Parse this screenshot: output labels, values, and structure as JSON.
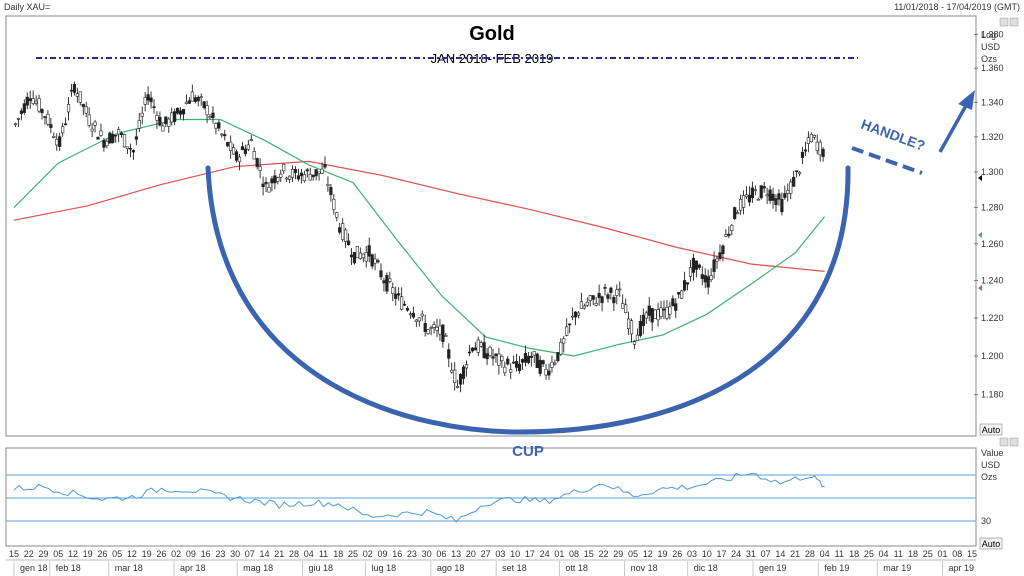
{
  "header": {
    "symbol": "Daily XAU=",
    "date_range": "11/01/2018 - 17/04/2019 (GMT)"
  },
  "annotations": {
    "cup": "CUP",
    "handle": "HANDLE?"
  },
  "buttons": {
    "auto_main": "Auto",
    "auto_rsi": "Auto"
  },
  "colors": {
    "candle": "#222222",
    "ma_fast": "#3cb371",
    "ma_slow": "#e05050",
    "cup": "#3a63b0",
    "resistance": "#1f2f8f",
    "rsi": "#4a9ad8"
  },
  "chart_data": [
    {
      "type": "candlestick",
      "title": "Gold",
      "subtitle": "JAN 2018- FEB 2019",
      "y_axis_labels": [
        "Log",
        "USD",
        "Ozs"
      ],
      "y_scale": "log",
      "ylim": [
        1160,
        1390
      ],
      "yticks": [
        1180,
        1200,
        1220,
        1240,
        1260,
        1280,
        1300,
        1320,
        1340,
        1360,
        1380
      ],
      "ytick_labels": [
        "1.180",
        "1.200",
        "1.220",
        "1.240",
        "1.260",
        "1.280",
        "1.300",
        "1.320",
        "1.340",
        "1.360",
        "1.380"
      ],
      "x_start": "2018-01-15",
      "x_end": "2019-04-15",
      "resistance_level": 1366,
      "close_series": [
        [
          "2018-01-15",
          1327
        ],
        [
          "2018-01-22",
          1345
        ],
        [
          "2018-01-29",
          1333
        ],
        [
          "2018-02-05",
          1316
        ],
        [
          "2018-02-12",
          1350
        ],
        [
          "2018-02-19",
          1330
        ],
        [
          "2018-02-26",
          1318
        ],
        [
          "2018-03-05",
          1322
        ],
        [
          "2018-03-12",
          1312
        ],
        [
          "2018-03-19",
          1345
        ],
        [
          "2018-03-26",
          1326
        ],
        [
          "2018-04-02",
          1333
        ],
        [
          "2018-04-09",
          1344
        ],
        [
          "2018-04-16",
          1336
        ],
        [
          "2018-04-23",
          1321
        ],
        [
          "2018-04-30",
          1308
        ],
        [
          "2018-05-07",
          1317
        ],
        [
          "2018-05-14",
          1291
        ],
        [
          "2018-05-21",
          1301
        ],
        [
          "2018-05-28",
          1298
        ],
        [
          "2018-06-04",
          1299
        ],
        [
          "2018-06-11",
          1300
        ],
        [
          "2018-06-18",
          1270
        ],
        [
          "2018-06-25",
          1254
        ],
        [
          "2018-07-02",
          1255
        ],
        [
          "2018-07-09",
          1241
        ],
        [
          "2018-07-16",
          1230
        ],
        [
          "2018-07-23",
          1224
        ],
        [
          "2018-07-30",
          1214
        ],
        [
          "2018-08-06",
          1212
        ],
        [
          "2018-08-13",
          1184
        ],
        [
          "2018-08-20",
          1206
        ],
        [
          "2018-08-27",
          1202
        ],
        [
          "2018-09-03",
          1196
        ],
        [
          "2018-09-10",
          1194
        ],
        [
          "2018-09-17",
          1200
        ],
        [
          "2018-09-24",
          1192
        ],
        [
          "2018-10-01",
          1203
        ],
        [
          "2018-10-08",
          1223
        ],
        [
          "2018-10-15",
          1228
        ],
        [
          "2018-10-22",
          1233
        ],
        [
          "2018-10-29",
          1232
        ],
        [
          "2018-11-05",
          1210
        ],
        [
          "2018-11-12",
          1222
        ],
        [
          "2018-11-19",
          1222
        ],
        [
          "2018-11-26",
          1230
        ],
        [
          "2018-12-03",
          1248
        ],
        [
          "2018-12-10",
          1240
        ],
        [
          "2018-12-17",
          1259
        ],
        [
          "2018-12-24",
          1280
        ],
        [
          "2018-12-31",
          1287
        ],
        [
          "2019-01-07",
          1290
        ],
        [
          "2019-01-14",
          1282
        ],
        [
          "2019-01-21",
          1298
        ],
        [
          "2019-01-28",
          1320
        ],
        [
          "2019-02-04",
          1310
        ]
      ],
      "ma_fast": [
        [
          "2018-01-15",
          1280
        ],
        [
          "2018-02-05",
          1305
        ],
        [
          "2018-03-05",
          1322
        ],
        [
          "2018-04-02",
          1330
        ],
        [
          "2018-04-23",
          1330
        ],
        [
          "2018-05-14",
          1318
        ],
        [
          "2018-06-04",
          1304
        ],
        [
          "2018-06-25",
          1294
        ],
        [
          "2018-07-16",
          1262
        ],
        [
          "2018-08-06",
          1232
        ],
        [
          "2018-08-27",
          1210
        ],
        [
          "2018-09-17",
          1204
        ],
        [
          "2018-10-08",
          1200
        ],
        [
          "2018-10-29",
          1206
        ],
        [
          "2018-11-19",
          1211
        ],
        [
          "2018-12-10",
          1222
        ],
        [
          "2018-12-31",
          1238
        ],
        [
          "2019-01-21",
          1255
        ],
        [
          "2019-02-04",
          1275
        ]
      ],
      "ma_slow": [
        [
          "2018-01-15",
          1273
        ],
        [
          "2018-02-19",
          1281
        ],
        [
          "2018-03-26",
          1293
        ],
        [
          "2018-04-30",
          1303
        ],
        [
          "2018-06-04",
          1306
        ],
        [
          "2018-07-09",
          1298
        ],
        [
          "2018-08-13",
          1288
        ],
        [
          "2018-09-17",
          1279
        ],
        [
          "2018-10-22",
          1269
        ],
        [
          "2018-11-26",
          1258
        ],
        [
          "2018-12-31",
          1249
        ],
        [
          "2019-02-04",
          1245
        ]
      ],
      "x_tick_days": [
        "15",
        "22",
        "29",
        "05",
        "12",
        "19",
        "26",
        "05",
        "12",
        "19",
        "26",
        "02",
        "09",
        "16",
        "23",
        "30",
        "07",
        "14",
        "21",
        "28",
        "04",
        "11",
        "18",
        "25",
        "02",
        "09",
        "16",
        "23",
        "30",
        "06",
        "13",
        "20",
        "27",
        "03",
        "10",
        "17",
        "24",
        "01",
        "08",
        "15",
        "22",
        "29",
        "05",
        "12",
        "19",
        "26",
        "03",
        "10",
        "17",
        "24",
        "31",
        "07",
        "14",
        "21",
        "28",
        "04",
        "11",
        "18",
        "25",
        "04",
        "11",
        "18",
        "25",
        "01",
        "08",
        "15"
      ],
      "x_month_labels": [
        "gen 18",
        "feb 18",
        "mar 18",
        "apr 18",
        "mag 18",
        "giu 18",
        "lug 18",
        "ago 18",
        "set 18",
        "ott 18",
        "nov 18",
        "dic 18",
        "gen 19",
        "feb 19",
        "mar 19",
        "apr 19"
      ]
    },
    {
      "type": "line",
      "indicator_labels": [
        "Value",
        "USD",
        "Ozs"
      ],
      "ytick_labels": [
        "30"
      ],
      "ylim": [
        10,
        90
      ],
      "levels": [
        70,
        50,
        30
      ],
      "series": [
        [
          "2018-01-15",
          58
        ],
        [
          "2018-01-29",
          60
        ],
        [
          "2018-02-12",
          54
        ],
        [
          "2018-02-26",
          49
        ],
        [
          "2018-03-12",
          51
        ],
        [
          "2018-03-26",
          58
        ],
        [
          "2018-04-09",
          57
        ],
        [
          "2018-04-23",
          52
        ],
        [
          "2018-05-07",
          48
        ],
        [
          "2018-05-21",
          44
        ],
        [
          "2018-06-04",
          46
        ],
        [
          "2018-06-18",
          45
        ],
        [
          "2018-07-02",
          34
        ],
        [
          "2018-07-16",
          36
        ],
        [
          "2018-07-30",
          38
        ],
        [
          "2018-08-13",
          30
        ],
        [
          "2018-08-27",
          46
        ],
        [
          "2018-09-10",
          49
        ],
        [
          "2018-09-24",
          47
        ],
        [
          "2018-10-08",
          55
        ],
        [
          "2018-10-22",
          63
        ],
        [
          "2018-11-05",
          52
        ],
        [
          "2018-11-19",
          58
        ],
        [
          "2018-12-03",
          60
        ],
        [
          "2018-12-17",
          65
        ],
        [
          "2018-12-31",
          72
        ],
        [
          "2019-01-14",
          63
        ],
        [
          "2019-01-28",
          70
        ],
        [
          "2019-02-04",
          60
        ]
      ]
    }
  ]
}
